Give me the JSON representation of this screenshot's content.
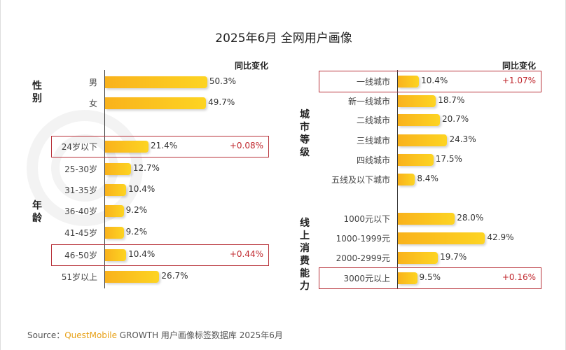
{
  "title": "2025年6月 全网用户画像",
  "change_header": "同比变化",
  "watermark": "QUESTMOBILE",
  "source": {
    "prefix": "Source：",
    "brand": "QuestMobile",
    "rest": " GROWTH 用户画像标签数据库 2025年6月"
  },
  "colors": {
    "bar": "#fbc01f",
    "highlight": "#b8323a",
    "change": "#c0282e",
    "brand": "#e8a21a"
  },
  "chart_data": [
    {
      "type": "bar",
      "orientation": "horizontal",
      "unit": "%",
      "groups": [
        {
          "label": "性别",
          "categories": [
            "男",
            "女"
          ],
          "values": [
            50.3,
            49.7
          ],
          "changes": [
            null,
            null
          ]
        },
        {
          "label": "年龄",
          "categories": [
            "24岁以下",
            "25-30岁",
            "31-35岁",
            "36-40岁",
            "41-45岁",
            "46-50岁",
            "51岁以上"
          ],
          "values": [
            21.4,
            12.7,
            10.4,
            9.2,
            9.2,
            10.4,
            26.7
          ],
          "changes": [
            "+0.08%",
            null,
            null,
            null,
            null,
            "+0.44%",
            null
          ]
        }
      ]
    },
    {
      "type": "bar",
      "orientation": "horizontal",
      "unit": "%",
      "groups": [
        {
          "label": "城市等级",
          "categories": [
            "一线城市",
            "新一线城市",
            "二线城市",
            "三线城市",
            "四线城市",
            "五线及以下城市"
          ],
          "values": [
            10.4,
            18.7,
            20.7,
            24.3,
            17.5,
            8.4
          ],
          "changes": [
            "+1.07%",
            null,
            null,
            null,
            null,
            null
          ]
        },
        {
          "label": "线上消费能力",
          "categories": [
            "1000元以下",
            "1000-1999元",
            "2000-2999元",
            "3000元以上"
          ],
          "values": [
            28.0,
            42.9,
            19.7,
            9.5
          ],
          "changes": [
            null,
            null,
            null,
            "+0.16%"
          ]
        }
      ]
    }
  ]
}
